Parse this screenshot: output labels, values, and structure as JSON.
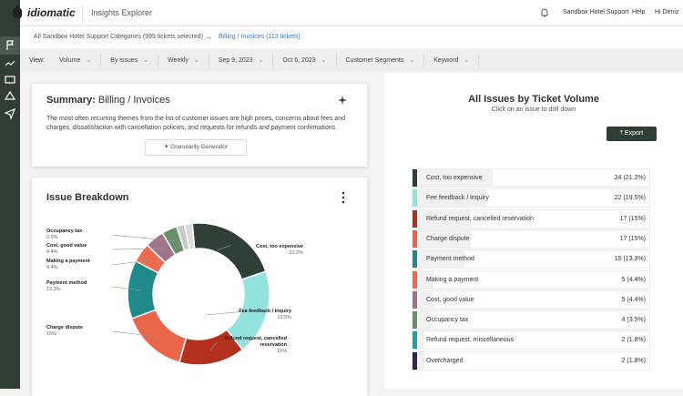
{
  "header": {
    "logo": "idiomatic",
    "app": "Insights Explorer",
    "account": "Sandbox Hotel Support",
    "help": "Help",
    "greeting": "Hi Deniz"
  },
  "breadcrumb": {
    "root": "All Sandbox Hotel Support Categories (995 tickets selected)",
    "arrow": "→",
    "current": "Billing / Invoices (113 tickets)"
  },
  "filters": {
    "label": "View:",
    "items": [
      "Volume",
      "By issues",
      "Weekly",
      "Sep 9, 2023",
      "Oct 6, 2023",
      "Customer Segments",
      "Keyword"
    ]
  },
  "summary": {
    "heading": "Summary:",
    "topic": "Billing / Invoices",
    "text": "The most often recurring themes from the list of customer issues are high prices, concerns about fees and charges, dissatisfaction with cancellation policies, and requests for refunds and payment confirmations.",
    "button": "Granularity Generator"
  },
  "breakdown": {
    "type": "pie",
    "title": "Issue Breakdown",
    "categories": [
      "Cost, too expensive",
      "Fee feedback / inquiry",
      "Refund request, cancelled reservation",
      "Charge dispute",
      "Payment method",
      "Making a payment",
      "Cost, good value",
      "Occupancy tax",
      null,
      null
    ],
    "values": [
      21.2,
      19.5,
      15,
      15,
      13.3,
      4.4,
      4.4,
      3.5,
      1.8,
      1.8
    ],
    "value_labels": [
      "21.2%",
      "19.5%",
      "15%",
      "15%",
      "13.3%",
      "4.4%",
      "4.4%",
      "3.5%",
      null,
      null
    ],
    "colors": [
      "#2e4035",
      "#92e3de",
      "#b3301d",
      "#e9664b",
      "#1f8a89",
      "#ee6b50",
      "#a07489",
      "#6b8f6c",
      "#c9c9c9",
      "#dcdcdc"
    ]
  },
  "issues": {
    "title": "All Issues by Ticket Volume",
    "subtitle": "Click on an issue to drill down",
    "button": "Export",
    "items": [
      {
        "name": "Cost, too expensive",
        "count": 24,
        "label": "24 (21.2%)",
        "color": "#2e4035"
      },
      {
        "name": "Fee feedback / inquiry",
        "count": 22,
        "label": "22 (19.5%)",
        "color": "#92e3de"
      },
      {
        "name": "Refund request, cancelled reservation",
        "count": 17,
        "label": "17 (15%)",
        "color": "#b3301d"
      },
      {
        "name": "Charge dispute",
        "count": 17,
        "label": "17 (15%)",
        "color": "#e9664b"
      },
      {
        "name": "Payment method",
        "count": 15,
        "label": "15 (13.3%)",
        "color": "#1f8a89"
      },
      {
        "name": "Making a payment",
        "count": 5,
        "label": "5 (4.4%)",
        "color": "#ee6b50"
      },
      {
        "name": "Cost, good value",
        "count": 5,
        "label": "5 (4.4%)",
        "color": "#a07489"
      },
      {
        "name": "Occupancy tax",
        "count": 4,
        "label": "4 (3.5%)",
        "color": "#6b8f6c"
      },
      {
        "name": "Refund request, miscellaneous",
        "count": 2,
        "label": "2 (1.8%)",
        "color": "#1ba3a3"
      },
      {
        "name": "Overcharged",
        "count": 2,
        "label": "2 (1.8%)",
        "color": "#3b2149"
      }
    ]
  }
}
